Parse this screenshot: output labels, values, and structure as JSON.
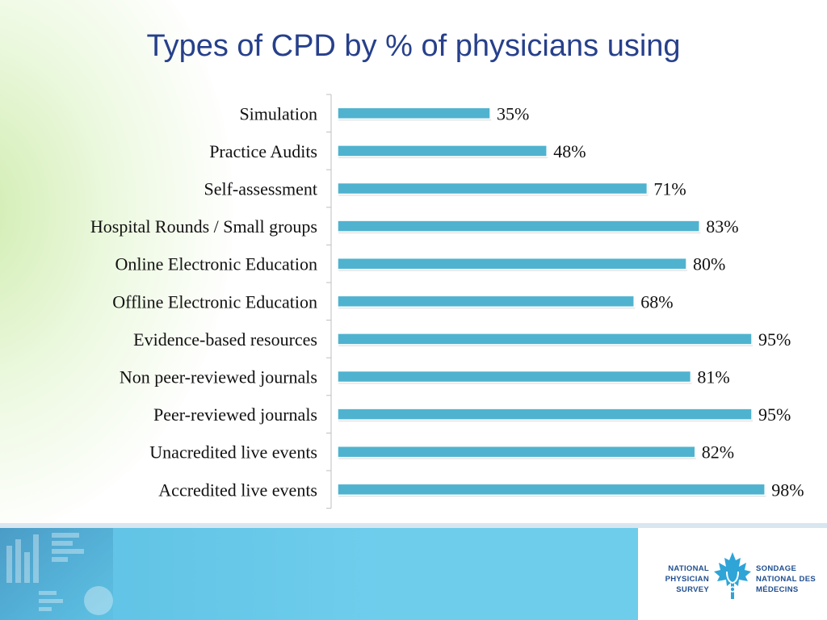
{
  "title": "Types of CPD by % of physicians using",
  "colors": {
    "bar": "#4fb3cf",
    "bar_edge": "#3a98b4",
    "title": "#27408b",
    "footer_blue": "#6fcdec",
    "logo": "#1f4e8f",
    "leaf": "#2fa4d7"
  },
  "chart_data": {
    "type": "bar",
    "orientation": "horizontal",
    "title": "Types of CPD by % of physicians using",
    "categories": [
      "Simulation",
      "Practice Audits",
      "Self-assessment",
      "Hospital Rounds / Small groups",
      "Online Electronic Education",
      "Offline Electronic Education",
      "Evidence-based resources",
      "Non peer-reviewed journals",
      "Peer-reviewed journals",
      "Unacredited live events",
      "Accredited live events"
    ],
    "values": [
      35,
      48,
      71,
      83,
      80,
      68,
      95,
      81,
      95,
      82,
      98
    ],
    "value_labels": [
      "35%",
      "48%",
      "71%",
      "83%",
      "80%",
      "68%",
      "95%",
      "81%",
      "95%",
      "82%",
      "98%"
    ],
    "xlim": [
      0,
      100
    ],
    "grid": false,
    "legend": "none"
  },
  "footer": {
    "logo_left": [
      "NATIONAL",
      "PHYSICIAN",
      "SURVEY"
    ],
    "logo_right": [
      "SONDAGE",
      "NATIONAL DES",
      "MÉDECINS"
    ],
    "logo_icon": "maple-leaf-stethoscope-icon"
  }
}
